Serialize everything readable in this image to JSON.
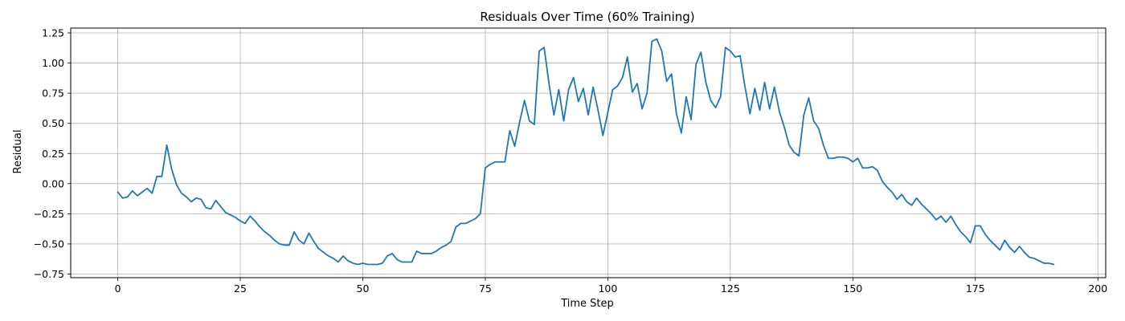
{
  "chart_data": {
    "type": "line",
    "title": "Residuals Over Time (60% Training)",
    "xlabel": "Time Step",
    "ylabel": "Residual",
    "xlim": [
      -9.6,
      201.6
    ],
    "ylim": [
      -0.78,
      1.29
    ],
    "xticks": [
      0,
      25,
      50,
      75,
      100,
      125,
      150,
      175,
      200
    ],
    "yticks": [
      -0.75,
      -0.5,
      -0.25,
      0.0,
      0.25,
      0.5,
      0.75,
      1.0,
      1.25
    ],
    "ytick_labels": [
      "−0.75",
      "−0.50",
      "−0.25",
      "0.00",
      "0.25",
      "0.50",
      "0.75",
      "1.00",
      "1.25"
    ],
    "grid": true,
    "line_color": "#1f77b4",
    "series": [
      {
        "values": [
          -0.07,
          -0.12,
          -0.11,
          -0.06,
          -0.1,
          -0.07,
          -0.04,
          -0.08,
          0.06,
          0.06,
          0.32,
          0.12,
          -0.01,
          -0.08,
          -0.11,
          -0.15,
          -0.12,
          -0.13,
          -0.2,
          -0.21,
          -0.14,
          -0.19,
          -0.24,
          -0.26,
          -0.28,
          -0.31,
          -0.33,
          -0.27,
          -0.31,
          -0.36,
          -0.4,
          -0.43,
          -0.47,
          -0.5,
          -0.51,
          -0.51,
          -0.4,
          -0.47,
          -0.5,
          -0.41,
          -0.48,
          -0.54,
          -0.57,
          -0.6,
          -0.62,
          -0.65,
          -0.6,
          -0.64,
          -0.66,
          -0.67,
          -0.66,
          -0.67,
          -0.67,
          -0.67,
          -0.66,
          -0.6,
          -0.58,
          -0.63,
          -0.65,
          -0.65,
          -0.65,
          -0.56,
          -0.58,
          -0.58,
          -0.58,
          -0.56,
          -0.53,
          -0.51,
          -0.48,
          -0.36,
          -0.33,
          -0.33,
          -0.31,
          -0.29,
          -0.25,
          0.13,
          0.16,
          0.18,
          0.18,
          0.18,
          0.44,
          0.31,
          0.51,
          0.69,
          0.52,
          0.49,
          1.1,
          1.13,
          0.83,
          0.57,
          0.78,
          0.52,
          0.78,
          0.88,
          0.68,
          0.79,
          0.57,
          0.8,
          0.61,
          0.4,
          0.59,
          0.78,
          0.81,
          0.88,
          1.05,
          0.76,
          0.83,
          0.62,
          0.75,
          1.18,
          1.2,
          1.1,
          0.85,
          0.91,
          0.58,
          0.42,
          0.72,
          0.53,
          0.99,
          1.09,
          0.84,
          0.69,
          0.63,
          0.72,
          1.13,
          1.1,
          1.05,
          1.06,
          0.8,
          0.58,
          0.79,
          0.61,
          0.84,
          0.62,
          0.8,
          0.6,
          0.47,
          0.32,
          0.26,
          0.23,
          0.57,
          0.71,
          0.52,
          0.46,
          0.32,
          0.21,
          0.21,
          0.22,
          0.22,
          0.21,
          0.18,
          0.21,
          0.13,
          0.13,
          0.14,
          0.11,
          0.02,
          -0.03,
          -0.07,
          -0.13,
          -0.09,
          -0.15,
          -0.18,
          -0.12,
          -0.17,
          -0.21,
          -0.25,
          -0.3,
          -0.27,
          -0.32,
          -0.27,
          -0.34,
          -0.4,
          -0.44,
          -0.49,
          -0.35,
          -0.35,
          -0.42,
          -0.47,
          -0.51,
          -0.55,
          -0.47,
          -0.53,
          -0.57,
          -0.52,
          -0.57,
          -0.61,
          -0.62,
          -0.64,
          -0.66,
          -0.66,
          -0.67
        ]
      }
    ]
  }
}
